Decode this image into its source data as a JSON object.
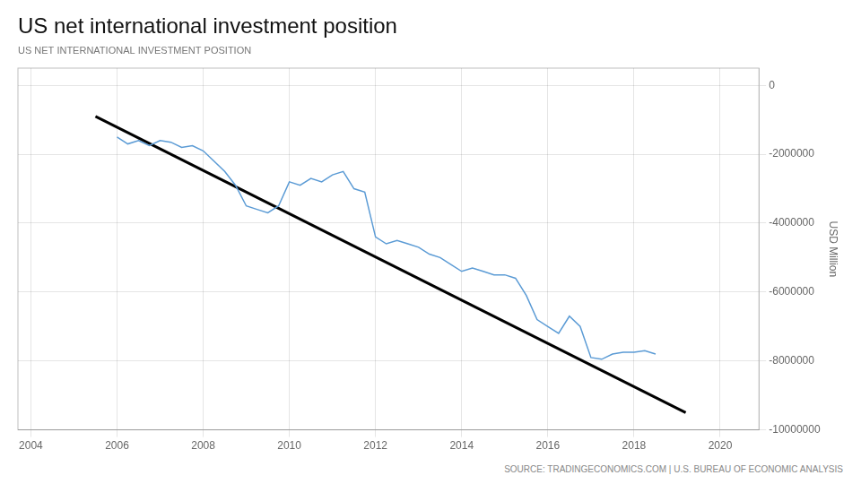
{
  "chart_data": {
    "type": "line",
    "title": "US net international investment position",
    "subtitle": "US NET INTERNATIONAL INVESTMENT POSITION",
    "source": "SOURCE: TRADINGECONOMICS.COM | U.S. BUREAU OF ECONOMIC ANALYSIS",
    "y_label": "USD Million",
    "xlim": [
      2003.7,
      2020.9
    ],
    "xticks": [
      2004,
      2006,
      2008,
      2010,
      2012,
      2014,
      2016,
      2018,
      2020
    ],
    "ylim": [
      -10000000,
      500000
    ],
    "yticks": [
      0,
      -2000000,
      -4000000,
      -6000000,
      -8000000,
      -10000000
    ],
    "grid": true,
    "series": [
      {
        "color": "#5b9bd5",
        "x": [
          2006.0,
          2006.25,
          2006.5,
          2006.75,
          2007.0,
          2007.25,
          2007.5,
          2007.75,
          2008.0,
          2008.25,
          2008.5,
          2008.75,
          2009.0,
          2009.25,
          2009.5,
          2009.75,
          2010.0,
          2010.25,
          2010.5,
          2010.75,
          2011.0,
          2011.25,
          2011.5,
          2011.75,
          2012.0,
          2012.25,
          2012.5,
          2012.75,
          2013.0,
          2013.25,
          2013.5,
          2013.75,
          2014.0,
          2014.25,
          2014.5,
          2014.75,
          2015.0,
          2015.25,
          2015.5,
          2015.75,
          2016.0,
          2016.25,
          2016.5,
          2016.75,
          2017.0,
          2017.25,
          2017.5,
          2017.75,
          2018.0,
          2018.25,
          2018.5
        ],
        "values": [
          -1500000,
          -1700000,
          -1600000,
          -1750000,
          -1600000,
          -1650000,
          -1800000,
          -1750000,
          -1900000,
          -2200000,
          -2500000,
          -2900000,
          -3500000,
          -3600000,
          -3700000,
          -3500000,
          -2800000,
          -2900000,
          -2700000,
          -2800000,
          -2600000,
          -2500000,
          -3000000,
          -3100000,
          -4400000,
          -4600000,
          -4500000,
          -4600000,
          -4700000,
          -4900000,
          -5000000,
          -5200000,
          -5400000,
          -5300000,
          -5400000,
          -5500000,
          -5500000,
          -5600000,
          -6100000,
          -6800000,
          -7000000,
          -7200000,
          -6700000,
          -7000000,
          -7900000,
          -7950000,
          -7800000,
          -7750000,
          -7750000,
          -7700000,
          -7800000
        ]
      },
      {
        "color": "#000000",
        "x": [
          2005.5,
          2019.2
        ],
        "values": [
          -900000,
          -9500000
        ]
      }
    ]
  }
}
